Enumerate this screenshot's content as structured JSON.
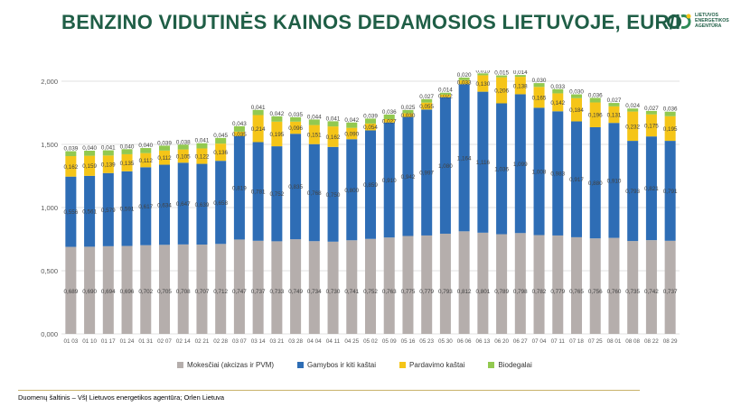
{
  "title": "BENZINO VIDUTINĖS KAINOS DEDAMOSIOS LIETUVOJE, EUR/l",
  "logo": {
    "text": "LIETUVOS\nENERGETIKOS\nAGENTŪRA"
  },
  "source": "Duomenų šaltinis – VšĮ Lietuvos energetikos agentūra; Orlen Lietuva",
  "colors": {
    "mokesciai": "#b5aeac",
    "gamybos": "#2e6db5",
    "pardavimo": "#f5c518",
    "biodegalai": "#92c950",
    "title": "#1f5e46"
  },
  "chart_data": {
    "type": "bar",
    "stacked": true,
    "categories": [
      "01 03",
      "01 10",
      "01 17",
      "01 24",
      "01 31",
      "02 07",
      "02 14",
      "02 21",
      "02 28",
      "03 07",
      "03 14",
      "03 21",
      "03 28",
      "04 04",
      "04 11",
      "04 25",
      "05 02",
      "05 09",
      "05 16",
      "05 23",
      "05 30",
      "06 06",
      "06 13",
      "06 20",
      "06 27",
      "07 04",
      "07 11",
      "07 18",
      "07 25",
      "08 01",
      "08 08",
      "08 22",
      "08 29"
    ],
    "series": [
      {
        "name": "Mokesčiai (akcizas ir PVM)",
        "values": [
          0.689,
          0.69,
          0.694,
          0.696,
          0.702,
          0.705,
          0.708,
          0.707,
          0.712,
          0.747,
          0.737,
          0.733,
          0.749,
          0.734,
          0.73,
          0.741,
          0.752,
          0.763,
          0.775,
          0.779,
          0.793,
          0.812,
          0.801,
          0.789,
          0.798,
          0.782,
          0.779,
          0.765,
          0.756,
          0.76,
          0.735,
          0.742,
          0.737
        ]
      },
      {
        "name": "Gamybos ir kiti kaštai",
        "values": [
          0.556,
          0.561,
          0.579,
          0.591,
          0.617,
          0.634,
          0.647,
          0.639,
          0.658,
          0.819,
          0.781,
          0.752,
          0.835,
          0.768,
          0.75,
          0.8,
          0.859,
          0.91,
          0.942,
          0.997,
          1.08,
          1.164,
          1.116,
          1.036,
          1.099,
          1.008,
          0.983,
          0.917,
          0.88,
          0.91,
          0.793,
          0.821,
          0.791
        ]
      },
      {
        "name": "Pardavimo kaštai",
        "values": [
          0.162,
          0.159,
          0.139,
          0.135,
          0.112,
          0.112,
          0.105,
          0.122,
          0.136,
          0.035,
          0.214,
          0.195,
          0.096,
          0.151,
          0.162,
          0.09,
          0.054,
          0.027,
          0.03,
          0.055,
          0.022,
          0.033,
          0.13,
          0.206,
          0.138,
          0.165,
          0.142,
          0.184,
          0.196,
          0.131,
          0.232,
          0.175,
          0.195
        ]
      },
      {
        "name": "Biodegalai",
        "values": [
          0.039,
          0.04,
          0.041,
          0.04,
          0.04,
          0.039,
          0.038,
          0.041,
          0.045,
          0.043,
          0.041,
          0.042,
          0.035,
          0.044,
          0.041,
          0.042,
          0.039,
          0.036,
          0.025,
          0.027,
          0.014,
          0.02,
          0.015,
          0.015,
          0.014,
          0.03,
          0.033,
          0.03,
          0.036,
          0.027,
          0.024,
          0.027,
          0.036
        ]
      }
    ],
    "value_labels": {
      "Mokesčiai (akcizas ir PVM)": [
        "0,689",
        "0,690",
        "0,694",
        "0,696",
        "0,702",
        "0,705",
        "0,708",
        "0,707",
        "0,712",
        "0,747",
        "0,737",
        "0,733",
        "0,749",
        "0,734",
        "0,730",
        "0,741",
        "0,752",
        "0,763",
        "0,775",
        "0,779",
        "0,793",
        "0,812",
        "0,801",
        "0,789",
        "0,798",
        "0,782",
        "0,779",
        "0,765",
        "0,756",
        "0,760",
        "0,735",
        "0,742",
        "0,737"
      ],
      "Gamybos ir kiti kaštai": [
        "0,556",
        "0,561",
        "0,579",
        "0,591",
        "0,617",
        "0,634",
        "0,647",
        "0,639",
        "0,658",
        "0,819",
        "0,781",
        "0,752",
        "0,835",
        "0,768",
        "0,750",
        "0,800",
        "0,859",
        "0,910",
        "0,942",
        "0,997",
        "1,080",
        "1,164",
        "1,116",
        "1,036",
        "1,099",
        "1,008",
        "0,983",
        "0,917",
        "0,880",
        "0,910",
        "0,793",
        "0,821",
        "0,791"
      ],
      "Pardavimo kaštai": [
        "0,162",
        "0,159",
        "0,139",
        "0,135",
        "0,112",
        "0,112",
        "0,105",
        "0,122",
        "0,136",
        "0,035",
        "0,214",
        "0,195",
        "0,096",
        "0,151",
        "0,162",
        "0,090",
        "0,054",
        "0,027",
        "0,030",
        "0,055",
        "0,022",
        "0,033",
        "0,130",
        "0,206",
        "0,138",
        "0,165",
        "0,142",
        "0,184",
        "0,196",
        "0,131",
        "0,232",
        "0,175",
        "0,195"
      ],
      "Biodegalai": [
        "0,039",
        "0,040",
        "0,041",
        "0,040",
        "0,040",
        "0,039",
        "0,038",
        "0,041",
        "0,045",
        "0,043",
        "0,041",
        "0,042",
        "0,035",
        "0,044",
        "0,041",
        "0,042",
        "0,039",
        "0,036",
        "0,025",
        "0,027",
        "0,014",
        "0,020",
        "0,015",
        "0,015",
        "0,014",
        "0,030",
        "0,033",
        "0,030",
        "0,036",
        "0,027",
        "0,024",
        "0,027",
        "0,036"
      ]
    },
    "y_ticks": [
      0,
      0.5,
      1.0,
      1.5,
      2.0
    ],
    "y_tick_labels": [
      "0,000",
      "0,500",
      "1,000",
      "1,500",
      "2,000"
    ],
    "ylim": [
      0,
      2.0
    ],
    "grid": true,
    "legend_position": "bottom",
    "title": "",
    "xlabel": "",
    "ylabel": ""
  }
}
